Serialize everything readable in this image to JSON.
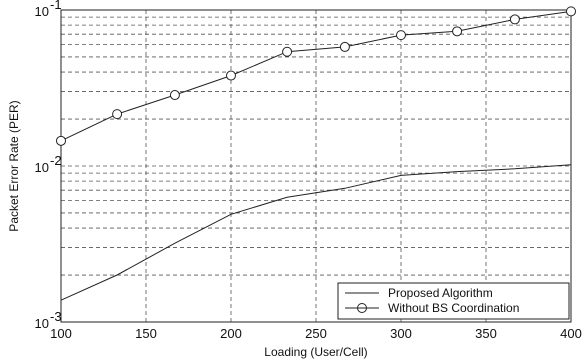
{
  "chart_data": {
    "type": "line",
    "title": "",
    "xlabel": "Loading (User/Cell)",
    "ylabel": "Packet Error Rate (PER)",
    "xlim": [
      100,
      400
    ],
    "ylim": [
      0.001,
      0.1
    ],
    "yscale": "log",
    "grid": true,
    "legend_position": "bottom-right",
    "x_ticks": [
      "100",
      "150",
      "200",
      "250",
      "300",
      "350",
      "400"
    ],
    "y_ticks": [
      {
        "base": "10",
        "exp": "-3",
        "value": 0.001
      },
      {
        "base": "10",
        "exp": "-2",
        "value": 0.01
      },
      {
        "base": "10",
        "exp": "-1",
        "value": 0.1
      }
    ],
    "series": [
      {
        "name": "Proposed Algorithm",
        "marker": "none",
        "color": "#222222",
        "x": [
          100,
          133,
          167,
          200,
          233,
          267,
          300,
          333,
          367,
          400
        ],
        "y": [
          0.00138,
          0.002,
          0.0032,
          0.0049,
          0.0063,
          0.0072,
          0.0087,
          0.0092,
          0.0096,
          0.0102
        ]
      },
      {
        "name": "Without BS Coordination",
        "marker": "circle",
        "color": "#222222",
        "x": [
          100,
          133,
          167,
          200,
          233,
          267,
          300,
          333,
          367,
          400
        ],
        "y": [
          0.0145,
          0.0215,
          0.0285,
          0.038,
          0.054,
          0.058,
          0.069,
          0.073,
          0.087,
          0.098
        ]
      }
    ]
  }
}
